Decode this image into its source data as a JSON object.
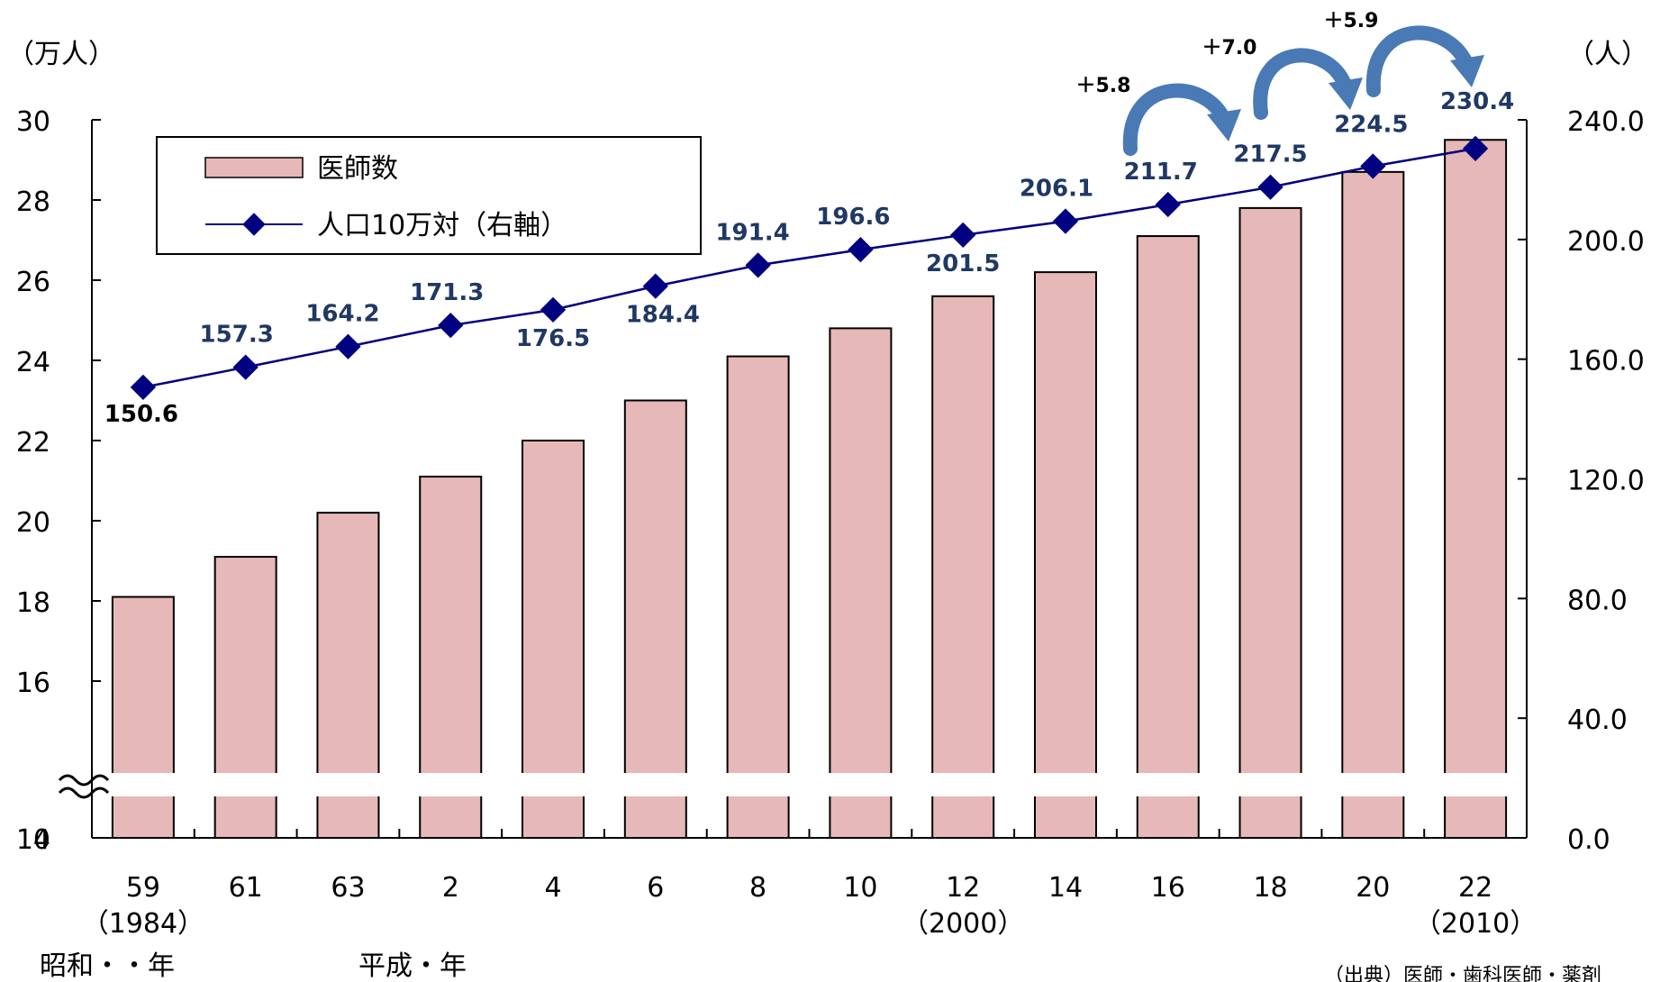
{
  "chart_data": {
    "type": "bar",
    "categories": [
      "59",
      "61",
      "63",
      "2",
      "4",
      "6",
      "8",
      "10",
      "12",
      "14",
      "16",
      "18",
      "20",
      "22"
    ],
    "category_sublabels": [
      "（1984）",
      "",
      "",
      "",
      "",
      "",
      "",
      "",
      "（2000）",
      "",
      "",
      "",
      "",
      "（2010）"
    ],
    "series": [
      {
        "name": "医師数",
        "type": "bar",
        "axis": "left",
        "values": [
          18.1,
          19.1,
          20.2,
          21.1,
          22.0,
          23.0,
          24.1,
          24.8,
          25.6,
          26.2,
          27.1,
          27.8,
          28.7,
          29.5
        ]
      },
      {
        "name": "人口10万対（右軸）",
        "type": "line",
        "axis": "right",
        "values": [
          150.6,
          157.3,
          164.2,
          171.3,
          176.5,
          184.4,
          191.4,
          196.6,
          201.5,
          206.1,
          211.7,
          217.5,
          224.5,
          230.4
        ]
      }
    ],
    "left_axis": {
      "unit": "（万人）",
      "ticks": [
        30,
        28,
        26,
        24,
        22,
        20,
        18,
        16,
        14,
        0
      ],
      "range": [
        14,
        30
      ],
      "broken": true
    },
    "right_axis": {
      "unit": "（人）",
      "ticks": [
        "240.0",
        "200.0",
        "160.0",
        "120.0",
        "80.0",
        "40.0",
        "0.0"
      ],
      "range": [
        0,
        240
      ]
    },
    "data_labels": [
      "150.6",
      "157.3",
      "164.2",
      "171.3",
      "176.5",
      "184.4",
      "191.4",
      "196.6",
      "201.5",
      "206.1",
      "211.7",
      "217.5",
      "224.5",
      "230.4"
    ],
    "annotations": [
      {
        "text": "＋5.8",
        "from": "16",
        "to": "18"
      },
      {
        "text": "＋7.0",
        "from": "18",
        "to": "20"
      },
      {
        "text": "＋5.9",
        "from": "20",
        "to": "22"
      }
    ],
    "era_labels": [
      "昭和・・年",
      "平成・年"
    ],
    "source": "（出典）医師・歯科医師・薬剤",
    "legend_position": "top-left",
    "grid": false
  },
  "colors": {
    "bar_fill": "#e6b8b7",
    "bar_stroke": "#000000",
    "line": "#000080",
    "label_blue": "#1f3864",
    "arrow": "#4a7ab5"
  }
}
